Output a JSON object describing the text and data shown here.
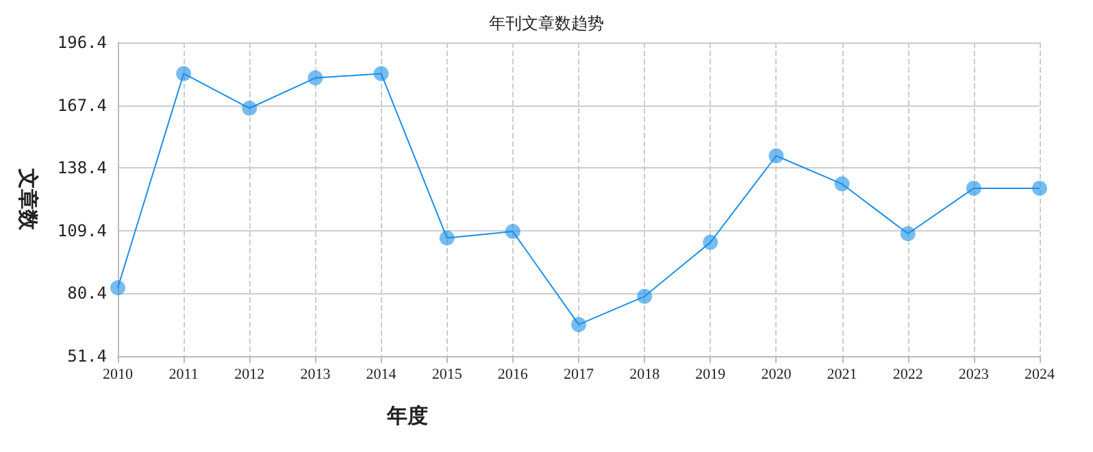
{
  "chart_data": {
    "type": "line",
    "title": "年刊文章数趋势",
    "xlabel": "年度",
    "ylabel": "文章数",
    "categories": [
      "2010",
      "2011",
      "2012",
      "2013",
      "2014",
      "2015",
      "2016",
      "2017",
      "2018",
      "2019",
      "2020",
      "2021",
      "2022",
      "2023",
      "2024"
    ],
    "series": [
      {
        "color": "#1a8fe8",
        "values": [
          83,
          182,
          166,
          180,
          182,
          106,
          109,
          66,
          79,
          104,
          144,
          131,
          108,
          129,
          129
        ]
      }
    ],
    "ylim": [
      51.4,
      196.4
    ],
    "yticks": [
      51.4,
      80.4,
      109.4,
      138.4,
      167.4,
      196.4
    ],
    "grid": true,
    "marker": "circle",
    "line_style": "solid"
  }
}
